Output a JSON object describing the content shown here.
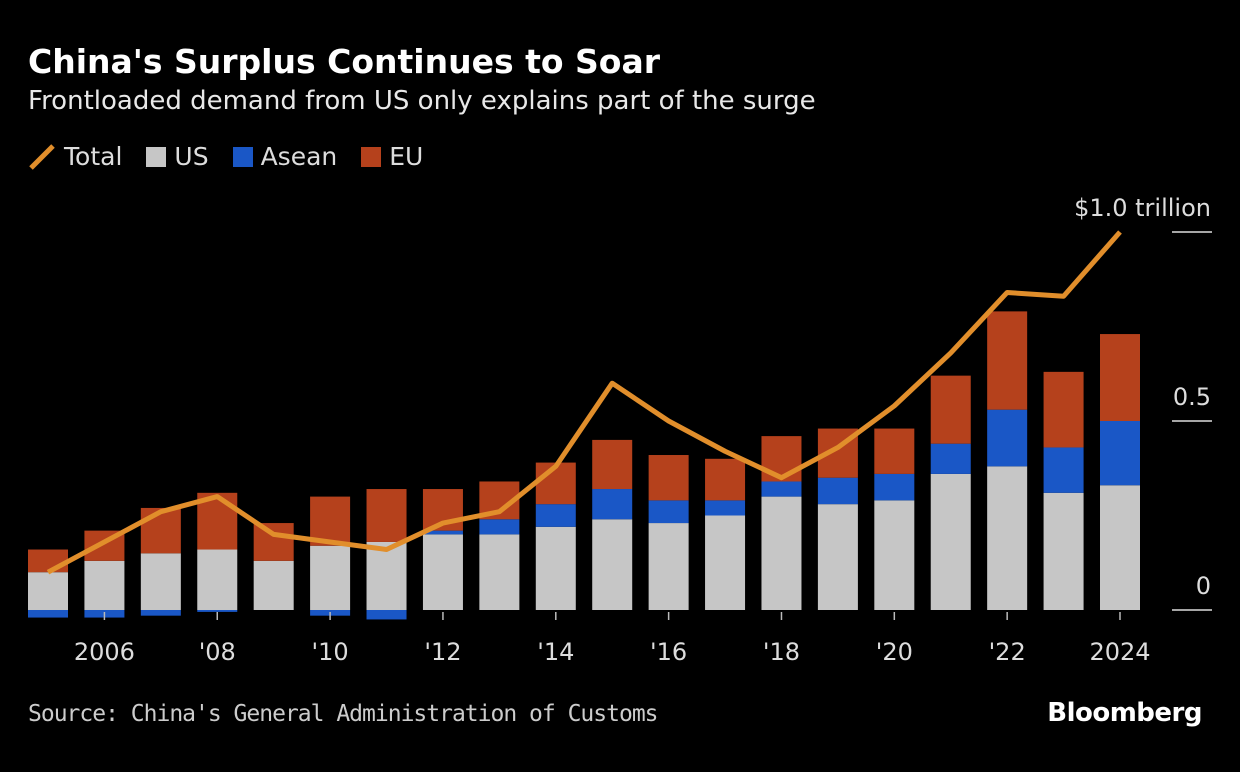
{
  "title": "China's Surplus Continues to Soar",
  "subtitle": "Frontloaded demand from US only explains part of the surge",
  "source": "Source: China's General Administration of Customs",
  "logo": "Bloomberg",
  "colors": {
    "Total": "#e18e2b",
    "US": "#c6c6c6",
    "Asean": "#1a57c6",
    "EU": "#b5411c",
    "background": "#000000"
  },
  "legend": [
    {
      "name": "Total",
      "icon": "line-swatch-icon"
    },
    {
      "name": "US",
      "icon": "square-swatch-icon"
    },
    {
      "name": "Asean",
      "icon": "square-swatch-icon"
    },
    {
      "name": "EU",
      "icon": "square-swatch-icon"
    }
  ],
  "chart_data": {
    "type": "bar",
    "stacked": true,
    "title": "China's Surplus Continues to Soar",
    "subtitle": "Frontloaded demand from US only explains part of the surge",
    "x": [
      2005,
      2006,
      2007,
      2008,
      2009,
      2010,
      2011,
      2012,
      2013,
      2014,
      2015,
      2016,
      2017,
      2018,
      2019,
      2020,
      2021,
      2022,
      2023,
      2024
    ],
    "xtick_values": [
      2006,
      2008,
      2010,
      2012,
      2014,
      2016,
      2018,
      2020,
      2022,
      2024
    ],
    "xtick_labels": [
      "2006",
      "'08",
      "'10",
      "'12",
      "'14",
      "'16",
      "'18",
      "'20",
      "'22",
      "2024"
    ],
    "ytick_values": [
      0,
      0.5,
      1.0
    ],
    "ytick_labels": [
      "0",
      "0.5",
      "$1.0 trillion"
    ],
    "ylim": [
      -0.03,
      1.0
    ],
    "yaxis_position": "right",
    "grid": false,
    "legend_position": "top-left",
    "series": [
      {
        "name": "US",
        "type": "bar",
        "values": [
          0.1,
          0.13,
          0.15,
          0.16,
          0.13,
          0.17,
          0.18,
          0.2,
          0.2,
          0.22,
          0.24,
          0.23,
          0.25,
          0.3,
          0.28,
          0.29,
          0.36,
          0.38,
          0.31,
          0.33
        ]
      },
      {
        "name": "Asean",
        "type": "bar",
        "values": [
          -0.02,
          -0.02,
          -0.015,
          -0.005,
          0.0,
          -0.015,
          -0.025,
          0.01,
          0.04,
          0.06,
          0.08,
          0.06,
          0.04,
          0.04,
          0.07,
          0.07,
          0.08,
          0.15,
          0.12,
          0.17
        ]
      },
      {
        "name": "EU",
        "type": "bar",
        "values": [
          0.06,
          0.08,
          0.12,
          0.15,
          0.1,
          0.13,
          0.14,
          0.11,
          0.1,
          0.11,
          0.13,
          0.12,
          0.11,
          0.12,
          0.13,
          0.12,
          0.18,
          0.26,
          0.2,
          0.23
        ]
      },
      {
        "name": "Total",
        "type": "line",
        "values": [
          0.1,
          0.18,
          0.26,
          0.3,
          0.2,
          0.18,
          0.16,
          0.23,
          0.26,
          0.38,
          0.6,
          0.5,
          0.42,
          0.35,
          0.43,
          0.54,
          0.68,
          0.84,
          0.83,
          1.0
        ]
      }
    ]
  }
}
